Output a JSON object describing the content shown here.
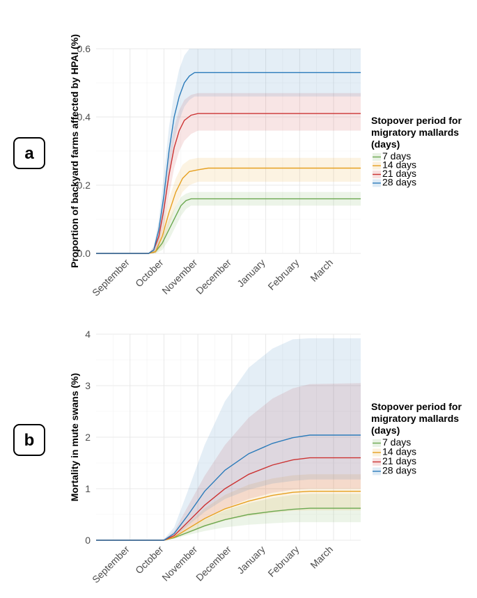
{
  "figure": {
    "panels": [
      {
        "id": "a",
        "label": "a",
        "type": "line",
        "ylabel": "Proportion of backyard farms affected by HPAI (%)",
        "xlabel": "",
        "ylim": [
          0,
          0.6
        ],
        "yticks": [
          0.0,
          0.2,
          0.4,
          0.6
        ],
        "ytick_labels": [
          "0.0",
          "0.2",
          "0.4",
          "0.6"
        ],
        "xlim": [
          0,
          7.8
        ],
        "months": [
          {
            "label": "September",
            "x": 1.0
          },
          {
            "label": "October",
            "x": 2.0
          },
          {
            "label": "November",
            "x": 3.0
          },
          {
            "label": "December",
            "x": 4.0
          },
          {
            "label": "January",
            "x": 5.0
          },
          {
            "label": "February",
            "x": 6.0
          },
          {
            "label": "March",
            "x": 7.0
          }
        ],
        "legend": {
          "title": [
            "Stopover period for",
            "migratory mallards",
            "(days)"
          ],
          "entries": [
            "7 days",
            "14 days",
            "21 days",
            "28 days"
          ]
        },
        "series": [
          {
            "name": "7 days",
            "color": "#6aa84f",
            "x": [
              0,
              1.05,
              1.55,
              1.75,
              1.95,
              2.15,
              2.35,
              2.5,
              2.65,
              2.8,
              3.0,
              7.8
            ],
            "values": [
              0,
              0,
              0,
              0.005,
              0.03,
              0.07,
              0.11,
              0.14,
              0.155,
              0.16,
              0.16,
              0.16
            ],
            "upper": [
              0,
              0,
              0,
              0.01,
              0.05,
              0.1,
              0.14,
              0.165,
              0.175,
              0.18,
              0.18,
              0.18
            ],
            "lower": [
              0,
              0,
              0,
              0,
              0.01,
              0.04,
              0.08,
              0.11,
              0.13,
              0.14,
              0.14,
              0.14
            ]
          },
          {
            "name": "14 days",
            "color": "#e6a020",
            "x": [
              0,
              1.05,
              1.55,
              1.75,
              1.95,
              2.15,
              2.35,
              2.55,
              2.75,
              3.0,
              3.3,
              7.8
            ],
            "values": [
              0,
              0,
              0,
              0.005,
              0.05,
              0.12,
              0.18,
              0.22,
              0.24,
              0.245,
              0.25,
              0.25
            ],
            "upper": [
              0,
              0,
              0,
              0.015,
              0.08,
              0.16,
              0.22,
              0.26,
              0.275,
              0.28,
              0.28,
              0.28
            ],
            "lower": [
              0,
              0,
              0,
              0,
              0.02,
              0.08,
              0.14,
              0.18,
              0.2,
              0.21,
              0.21,
              0.21
            ]
          },
          {
            "name": "21 days",
            "color": "#cc3333",
            "x": [
              0,
              1.05,
              1.55,
              1.7,
              1.85,
              2.0,
              2.15,
              2.3,
              2.45,
              2.6,
              2.8,
              3.0,
              7.8
            ],
            "values": [
              0,
              0,
              0,
              0.01,
              0.05,
              0.13,
              0.23,
              0.31,
              0.36,
              0.39,
              0.405,
              0.41,
              0.41
            ],
            "upper": [
              0,
              0,
              0,
              0.02,
              0.08,
              0.18,
              0.29,
              0.37,
              0.42,
              0.45,
              0.465,
              0.47,
              0.47
            ],
            "lower": [
              0,
              0,
              0,
              0,
              0.02,
              0.08,
              0.17,
              0.25,
              0.3,
              0.33,
              0.35,
              0.36,
              0.36
            ]
          },
          {
            "name": "28 days",
            "color": "#2b7bba",
            "x": [
              0,
              1.05,
              1.55,
              1.7,
              1.85,
              2.0,
              2.15,
              2.3,
              2.45,
              2.6,
              2.75,
              2.9,
              3.0,
              7.8
            ],
            "values": [
              0,
              0,
              0,
              0.01,
              0.07,
              0.17,
              0.3,
              0.4,
              0.46,
              0.5,
              0.52,
              0.53,
              0.53,
              0.53
            ],
            "upper": [
              0,
              0,
              0,
              0.02,
              0.1,
              0.23,
              0.37,
              0.47,
              0.54,
              0.58,
              0.6,
              0.6,
              0.6,
              0.6
            ],
            "lower": [
              0,
              0,
              0,
              0,
              0.03,
              0.11,
              0.23,
              0.33,
              0.39,
              0.43,
              0.45,
              0.46,
              0.46,
              0.46
            ]
          }
        ]
      },
      {
        "id": "b",
        "label": "b",
        "type": "line",
        "ylabel": "Mortality in mute swans (%)",
        "xlabel": "",
        "ylim": [
          0,
          4
        ],
        "yticks": [
          0,
          1,
          2,
          3,
          4
        ],
        "ytick_labels": [
          "0",
          "1",
          "2",
          "3",
          "4"
        ],
        "xlim": [
          0,
          7.8
        ],
        "months": [
          {
            "label": "September",
            "x": 1.0
          },
          {
            "label": "October",
            "x": 2.0
          },
          {
            "label": "November",
            "x": 3.0
          },
          {
            "label": "December",
            "x": 4.0
          },
          {
            "label": "January",
            "x": 5.0
          },
          {
            "label": "February",
            "x": 6.0
          },
          {
            "label": "March",
            "x": 7.0
          }
        ],
        "legend": {
          "title": [
            "Stopover period for",
            "migratory mallards",
            "(days)"
          ],
          "entries": [
            "7 days",
            "14 days",
            "21 days",
            "28 days"
          ]
        },
        "series": [
          {
            "name": "7 days",
            "color": "#6aa84f",
            "x": [
              0,
              1.8,
              2.0,
              2.3,
              2.7,
              3.2,
              3.8,
              4.5,
              5.2,
              5.8,
              6.3,
              7.8
            ],
            "values": [
              0,
              0,
              0,
              0.05,
              0.15,
              0.28,
              0.4,
              0.5,
              0.56,
              0.6,
              0.62,
              0.62
            ],
            "upper": [
              0,
              0,
              0.01,
              0.07,
              0.22,
              0.4,
              0.58,
              0.72,
              0.82,
              0.88,
              0.9,
              0.9
            ],
            "lower": [
              0,
              0,
              0,
              0.03,
              0.1,
              0.18,
              0.25,
              0.3,
              0.33,
              0.35,
              0.35,
              0.35
            ]
          },
          {
            "name": "14 days",
            "color": "#e6a020",
            "x": [
              0,
              1.8,
              2.0,
              2.3,
              2.7,
              3.2,
              3.8,
              4.5,
              5.2,
              5.8,
              6.3,
              7.8
            ],
            "values": [
              0,
              0,
              0,
              0.06,
              0.22,
              0.42,
              0.61,
              0.76,
              0.87,
              0.93,
              0.95,
              0.95
            ],
            "upper": [
              0,
              0,
              0.01,
              0.1,
              0.32,
              0.62,
              0.88,
              1.08,
              1.2,
              1.26,
              1.28,
              1.28
            ],
            "lower": [
              0,
              0,
              0,
              0.03,
              0.13,
              0.26,
              0.38,
              0.47,
              0.53,
              0.57,
              0.58,
              0.58
            ]
          },
          {
            "name": "21 days",
            "color": "#cc3333",
            "x": [
              0,
              1.8,
              2.0,
              2.3,
              2.7,
              3.2,
              3.8,
              4.5,
              5.2,
              5.8,
              6.3,
              7.8
            ],
            "values": [
              0,
              0,
              0,
              0.09,
              0.35,
              0.68,
              1.0,
              1.28,
              1.46,
              1.56,
              1.6,
              1.6
            ],
            "upper": [
              0,
              0,
              0.02,
              0.17,
              0.65,
              1.25,
              1.85,
              2.38,
              2.75,
              2.95,
              3.03,
              3.05
            ],
            "lower": [
              0,
              0,
              0,
              0.05,
              0.22,
              0.42,
              0.62,
              0.8,
              0.92,
              0.98,
              1.0,
              1.0
            ]
          },
          {
            "name": "28 days",
            "color": "#2b7bba",
            "x": [
              0,
              1.8,
              2.0,
              2.3,
              2.7,
              3.2,
              3.8,
              4.5,
              5.2,
              5.8,
              6.3,
              7.8
            ],
            "values": [
              0,
              0,
              0,
              0.13,
              0.48,
              0.95,
              1.36,
              1.68,
              1.88,
              1.99,
              2.04,
              2.04
            ],
            "upper": [
              0,
              0,
              0.02,
              0.25,
              0.95,
              1.85,
              2.7,
              3.35,
              3.72,
              3.9,
              3.92,
              3.92
            ],
            "lower": [
              0,
              0,
              0,
              0.06,
              0.28,
              0.55,
              0.8,
              0.98,
              1.1,
              1.15,
              1.18,
              1.18
            ]
          }
        ]
      }
    ]
  },
  "chart_data": [
    {
      "type": "line",
      "title": "",
      "panel": "a",
      "xlabel": "",
      "ylabel": "Proportion of backyard farms affected by HPAI (%)",
      "categories": [
        "September",
        "October",
        "November",
        "December",
        "January",
        "February",
        "March"
      ],
      "ylim": [
        0,
        0.6
      ],
      "legend_title": "Stopover period for migratory mallards (days)",
      "series": [
        {
          "name": "7 days",
          "final_value": 0.16,
          "ci": [
            0.14,
            0.18
          ]
        },
        {
          "name": "14 days",
          "final_value": 0.25,
          "ci": [
            0.21,
            0.28
          ]
        },
        {
          "name": "21 days",
          "final_value": 0.41,
          "ci": [
            0.36,
            0.47
          ]
        },
        {
          "name": "28 days",
          "final_value": 0.53,
          "ci": [
            0.46,
            0.6
          ]
        }
      ]
    },
    {
      "type": "line",
      "title": "",
      "panel": "b",
      "xlabel": "",
      "ylabel": "Mortality in mute swans (%)",
      "categories": [
        "September",
        "October",
        "November",
        "December",
        "January",
        "February",
        "March"
      ],
      "ylim": [
        0,
        4
      ],
      "legend_title": "Stopover period for migratory mallards (days)",
      "series": [
        {
          "name": "7 days",
          "final_value": 0.62,
          "ci": [
            0.35,
            0.9
          ]
        },
        {
          "name": "14 days",
          "final_value": 0.95,
          "ci": [
            0.58,
            1.28
          ]
        },
        {
          "name": "21 days",
          "final_value": 1.6,
          "ci": [
            1.0,
            3.05
          ]
        },
        {
          "name": "28 days",
          "final_value": 2.04,
          "ci": [
            1.18,
            3.92
          ]
        }
      ]
    }
  ]
}
